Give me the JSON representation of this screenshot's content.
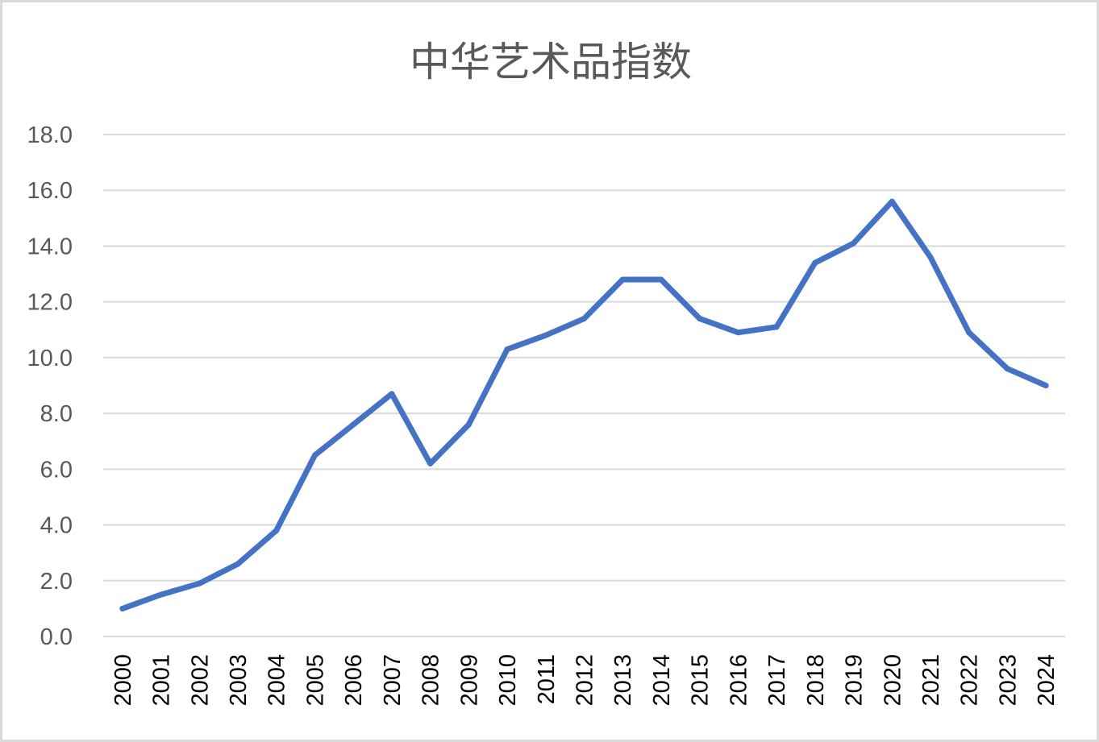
{
  "chart_data": {
    "type": "line",
    "title": "中华艺术品指数",
    "xlabel": "",
    "ylabel": "",
    "ylim": [
      0,
      18
    ],
    "yticks": [
      "0.0",
      "2.0",
      "4.0",
      "6.0",
      "8.0",
      "10.0",
      "12.0",
      "14.0",
      "16.0",
      "18.0"
    ],
    "categories": [
      "2000",
      "2001",
      "2002",
      "2003",
      "2004",
      "2005",
      "2006",
      "2007",
      "2008",
      "2009",
      "2010",
      "2011",
      "2012",
      "2013",
      "2014",
      "2015",
      "2016",
      "2017",
      "2018",
      "2019",
      "2020",
      "2021",
      "2022",
      "2023",
      "2024"
    ],
    "series": [
      {
        "values": [
          1.0,
          1.5,
          1.9,
          2.6,
          3.8,
          6.5,
          7.6,
          8.7,
          6.2,
          7.6,
          10.3,
          10.8,
          11.4,
          12.8,
          12.8,
          11.4,
          10.9,
          11.1,
          13.4,
          14.1,
          15.6,
          13.6,
          10.9,
          9.6,
          9.0
        ],
        "color": "#4472c4"
      }
    ],
    "grid": true,
    "legend": "none"
  }
}
